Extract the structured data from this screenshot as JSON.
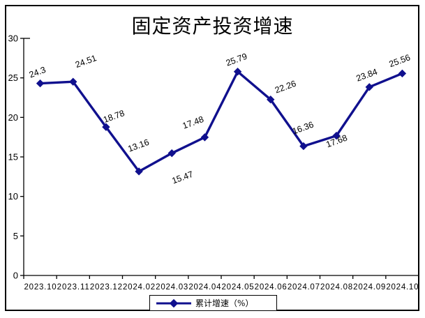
{
  "chart_data": {
    "type": "line",
    "title": "固定资产投资增速",
    "categories": [
      "2023.10",
      "2023.11",
      "2023.12",
      "2024.02",
      "2024.03",
      "2024.04",
      "2024.05",
      "2024.06",
      "2024.07",
      "2024.08",
      "2024.09",
      "2024.10"
    ],
    "series": [
      {
        "name": "累计增速（%）",
        "values": [
          24.3,
          24.51,
          18.78,
          13.16,
          15.47,
          17.48,
          25.79,
          22.26,
          16.36,
          17.68,
          23.84,
          25.56
        ]
      }
    ],
    "data_labels": [
      "24.3",
      "24.51",
      "18.78",
      "13.16",
      "15.47",
      "17.48",
      "25.79",
      "22.26",
      "16.36",
      "17.68",
      "23.84",
      "25.56"
    ],
    "ylim": [
      0,
      30
    ],
    "yticks": [
      "0",
      "5",
      "10",
      "15",
      "20",
      "25",
      "30"
    ],
    "xlabel": "",
    "ylabel": "",
    "grid": "off",
    "legend_position": "bottom",
    "colors": {
      "line": "#10108E",
      "axis": "#000000",
      "text": "#000000",
      "background": "#FFFFFF"
    }
  },
  "legend": {
    "label": "累计增速（%）"
  }
}
